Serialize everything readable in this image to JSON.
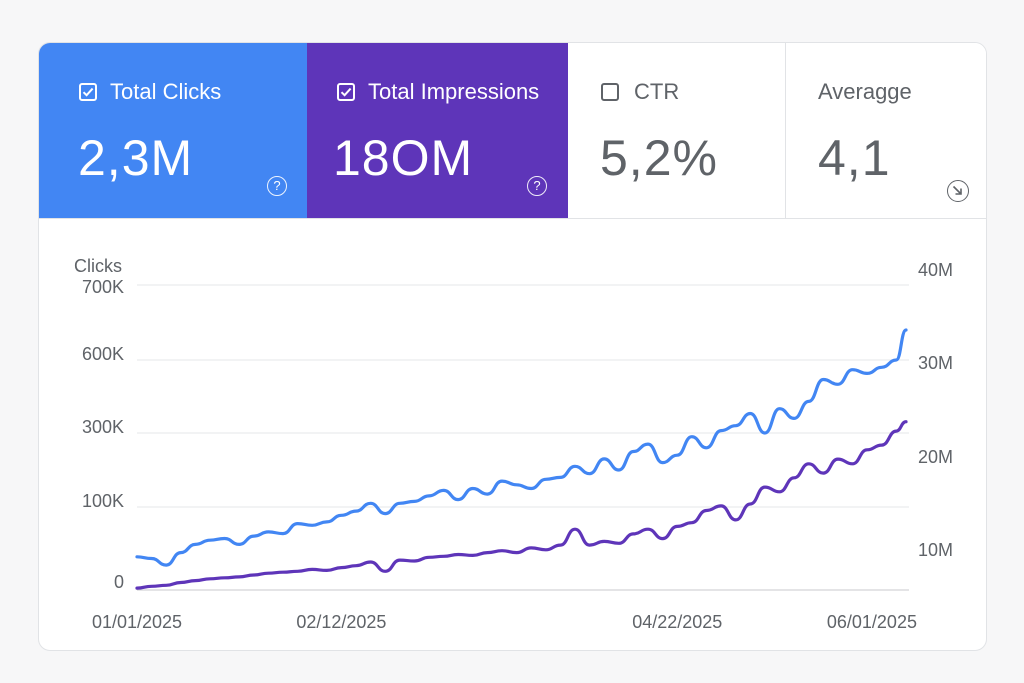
{
  "metrics": {
    "clicks": {
      "label": "Total Clicks",
      "value": "2,3M",
      "checked": true,
      "color": "#4286f3",
      "help_glyph": "?"
    },
    "impressions": {
      "label": "Total Impressions",
      "value": "18OM",
      "checked": true,
      "color": "#5e35b9",
      "help_glyph": "?"
    },
    "ctr": {
      "label": "CTR",
      "value": "5,2%",
      "checked": false
    },
    "position": {
      "label": "Averagge",
      "value": "4,1",
      "icon": "arrow-down-right-icon"
    }
  },
  "chart_data": {
    "type": "line",
    "title": "",
    "ylabel": "Clicks",
    "y_left_ticks": [
      "700K",
      "600K",
      "300K",
      "100K",
      "0"
    ],
    "y_right_ticks": [
      "40M",
      "30M",
      "20M",
      "10M"
    ],
    "x_tick_labels": [
      "01/01/2025",
      "02/12/2025",
      "04/22/2025",
      "06/01/2025"
    ],
    "grid": true,
    "x": [
      "2025-01-01",
      "2025-01-04",
      "2025-01-07",
      "2025-01-10",
      "2025-01-13",
      "2025-01-16",
      "2025-01-19",
      "2025-01-22",
      "2025-01-25",
      "2025-01-28",
      "2025-01-31",
      "2025-02-03",
      "2025-02-06",
      "2025-02-09",
      "2025-02-12",
      "2025-02-15",
      "2025-02-18",
      "2025-02-21",
      "2025-02-24",
      "2025-02-27",
      "2025-03-02",
      "2025-03-05",
      "2025-03-08",
      "2025-03-11",
      "2025-03-14",
      "2025-03-17",
      "2025-03-20",
      "2025-03-23",
      "2025-03-26",
      "2025-03-29",
      "2025-04-01",
      "2025-04-04",
      "2025-04-07",
      "2025-04-10",
      "2025-04-13",
      "2025-04-16",
      "2025-04-19",
      "2025-04-22",
      "2025-04-25",
      "2025-04-28",
      "2025-05-01",
      "2025-05-04",
      "2025-05-07",
      "2025-05-10",
      "2025-05-13",
      "2025-05-16",
      "2025-05-19",
      "2025-05-22",
      "2025-05-25",
      "2025-05-28",
      "2025-05-31",
      "2025-06-03",
      "2025-06-06",
      "2025-06-08"
    ],
    "series": [
      {
        "key": "clicks",
        "axis": "left",
        "color": "#4286f3",
        "values": [
          40000,
          38000,
          30000,
          45000,
          55000,
          60000,
          62000,
          55000,
          65000,
          70000,
          68000,
          80000,
          78000,
          82000,
          90000,
          95000,
          110000,
          92000,
          110000,
          115000,
          130000,
          145000,
          120000,
          150000,
          135000,
          170000,
          160000,
          150000,
          175000,
          180000,
          210000,
          190000,
          230000,
          200000,
          250000,
          270000,
          220000,
          240000,
          290000,
          260000,
          310000,
          330000,
          380000,
          300000,
          400000,
          360000,
          430000,
          520000,
          500000,
          560000,
          545000,
          570000,
          600000,
          640000
        ]
      },
      {
        "key": "impressions",
        "axis": "right",
        "color": "#5e35b9",
        "values": [
          0.2,
          0.4,
          0.5,
          0.8,
          1.0,
          1.2,
          1.3,
          1.4,
          1.6,
          1.8,
          1.9,
          2.0,
          2.2,
          2.1,
          2.4,
          2.6,
          3.0,
          2.0,
          3.2,
          3.1,
          3.5,
          3.6,
          3.8,
          3.7,
          4.0,
          4.2,
          4.0,
          4.5,
          4.3,
          4.8,
          6.5,
          4.8,
          5.2,
          5.0,
          6.0,
          6.5,
          5.5,
          6.8,
          7.2,
          8.5,
          9.0,
          7.5,
          9.2,
          11.0,
          10.5,
          12.0,
          13.5,
          12.5,
          14.0,
          13.5,
          15.0,
          15.5,
          17.0,
          18.0
        ]
      }
    ]
  }
}
